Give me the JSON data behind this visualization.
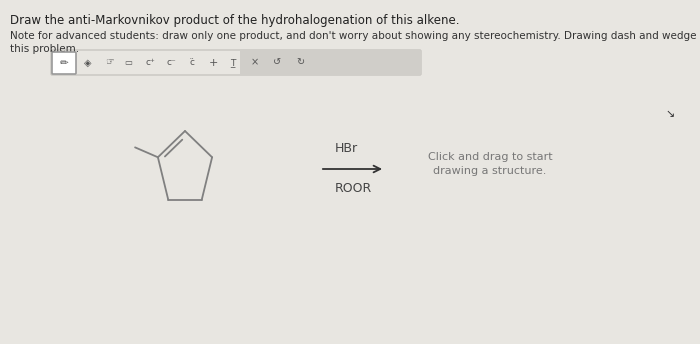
{
  "bg_color": "#dedad4",
  "content_bg": "#e8e6e1",
  "title_text": "Draw the anti-Markovnikov product of the hydrohalogenation of this alkene.",
  "note_text": "Note for advanced students: draw only one product, and don't worry about showing any stereochemistry. Drawing dash and wedge bonds has been disabled for\nthis problem.",
  "title_fontsize": 8.5,
  "note_fontsize": 7.5,
  "reagent_above": "HBr",
  "reagent_below": "ROOR",
  "click_text": "Click and drag to start\ndrawing a structure.",
  "bond_color": "#808080",
  "text_color": "#555555",
  "toolbar_color": "#e8e6e1",
  "toolbar_border": "#c0bdb8",
  "pencil_box_color": "white",
  "pencil_box_border": "#999999",
  "right_panel_color": "#d0cec9"
}
